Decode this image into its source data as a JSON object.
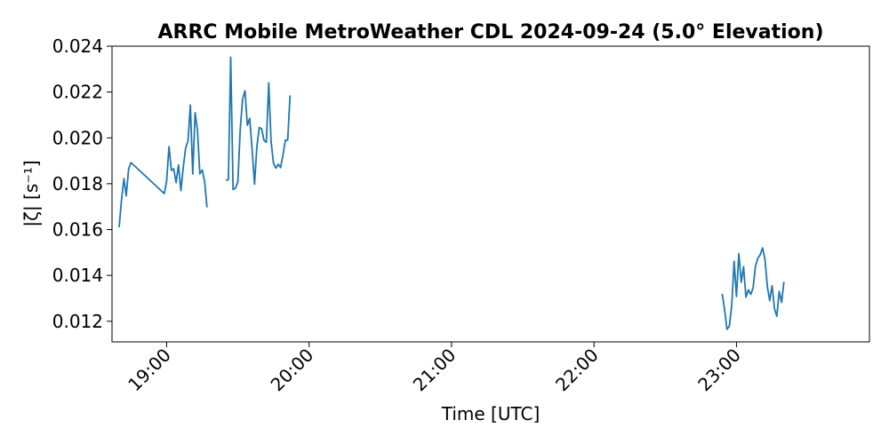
{
  "chart_data": {
    "type": "line",
    "title": "ARRC Mobile MetroWeather CDL 2024-09-24 (5.0° Elevation)",
    "xlabel": "Time [UTC]",
    "ylabel": "|ζ| [s⁻¹]",
    "xlim": [
      "18:37",
      "23:56"
    ],
    "ylim": [
      0.0111,
      0.024
    ],
    "x_ticks": [
      "19:00",
      "20:00",
      "21:00",
      "22:00",
      "23:00"
    ],
    "y_ticks": [
      "0.012",
      "0.014",
      "0.016",
      "0.018",
      "0.020",
      "0.022",
      "0.024"
    ],
    "grid": false,
    "line_color": "#1f77b4",
    "series": [
      {
        "segments": [
          {
            "x": [
              "18:40",
              "18:41",
              "18:42",
              "18:43",
              "18:44",
              "18:45",
              "18:59",
              "19:00",
              "19:01",
              "19:02",
              "19:03",
              "19:04",
              "19:05",
              "19:06",
              "19:07",
              "19:08",
              "19:09",
              "19:10",
              "19:11",
              "19:12",
              "19:13",
              "19:14",
              "19:15",
              "19:16",
              "19:17",
              "19:18",
              "19:19",
              "19:20",
              "19:21",
              "19:22"
            ],
            "y": [
              0.0161,
              0.0173,
              0.01822,
              0.01747,
              0.01865,
              0.01892,
              0.01757,
              0.0181,
              0.01962,
              0.01858,
              0.01865,
              0.01805,
              0.01882,
              0.0177,
              0.0187,
              0.01955,
              0.01987,
              0.02143,
              0.01842,
              0.0211,
              0.0203,
              0.01843,
              0.0186,
              0.0181,
              0.01697,
              null,
              null,
              null,
              null,
              null
            ]
          },
          {
            "x": [
              "19:25",
              "19:26",
              "19:27",
              "19:28",
              "19:29",
              "19:30",
              "19:31",
              "19:32",
              "19:33",
              "19:34",
              "19:35",
              "19:36",
              "19:37",
              "19:38",
              "19:39",
              "19:40",
              "19:41",
              "19:42",
              "19:43",
              "19:44",
              "19:45",
              "19:46",
              "19:47",
              "19:48",
              "19:49",
              "19:50",
              "19:51",
              "19:52",
              "19:53",
              "19:54",
              "19:55",
              "19:56",
              "19:57",
              "19:58",
              "20:00",
              "20:02"
            ],
            "y": [
              0.01815,
              0.01818,
              0.02352,
              0.01775,
              0.0178,
              0.0181,
              0.02035,
              0.0217,
              0.02205,
              0.02055,
              0.02085,
              0.0195,
              0.01798,
              0.0196,
              0.02045,
              0.0204,
              0.0199,
              0.0198,
              0.0224,
              0.01985,
              0.0189,
              0.01868,
              0.01885,
              0.0187,
              0.01925,
              0.0199,
              0.0199,
              0.02185,
              null,
              null,
              null,
              null,
              null,
              null,
              null,
              null
            ]
          },
          {
            "x": [
              "22:54",
              "22:55",
              "22:56",
              "22:57",
              "22:58",
              "22:59",
              "23:00",
              "23:01",
              "23:02",
              "23:03",
              "23:04",
              "23:05",
              "23:06",
              "23:07",
              "23:08",
              "23:09",
              "23:10",
              "23:11",
              "23:12",
              "23:13",
              "23:14",
              "23:15",
              "23:16",
              "23:17",
              "23:18",
              "23:19",
              "23:20",
              "23:21",
              "23:22",
              "23:23",
              "23:24",
              "23:25",
              "23:26",
              "23:27",
              "23:28",
              "23:29"
            ],
            "y": [
              0.0132,
              0.0125,
              0.01165,
              0.01178,
              0.0127,
              0.01462,
              0.01308,
              0.01495,
              0.0137,
              0.01438,
              0.01305,
              0.01337,
              0.01317,
              0.01345,
              0.0144,
              0.01475,
              0.0149,
              0.0152,
              0.0147,
              0.0135,
              0.0129,
              0.01355,
              0.01255,
              0.01222,
              0.0133,
              0.01282,
              0.01372,
              null,
              null,
              null,
              null,
              null,
              null,
              null,
              null,
              null
            ]
          }
        ]
      }
    ]
  }
}
